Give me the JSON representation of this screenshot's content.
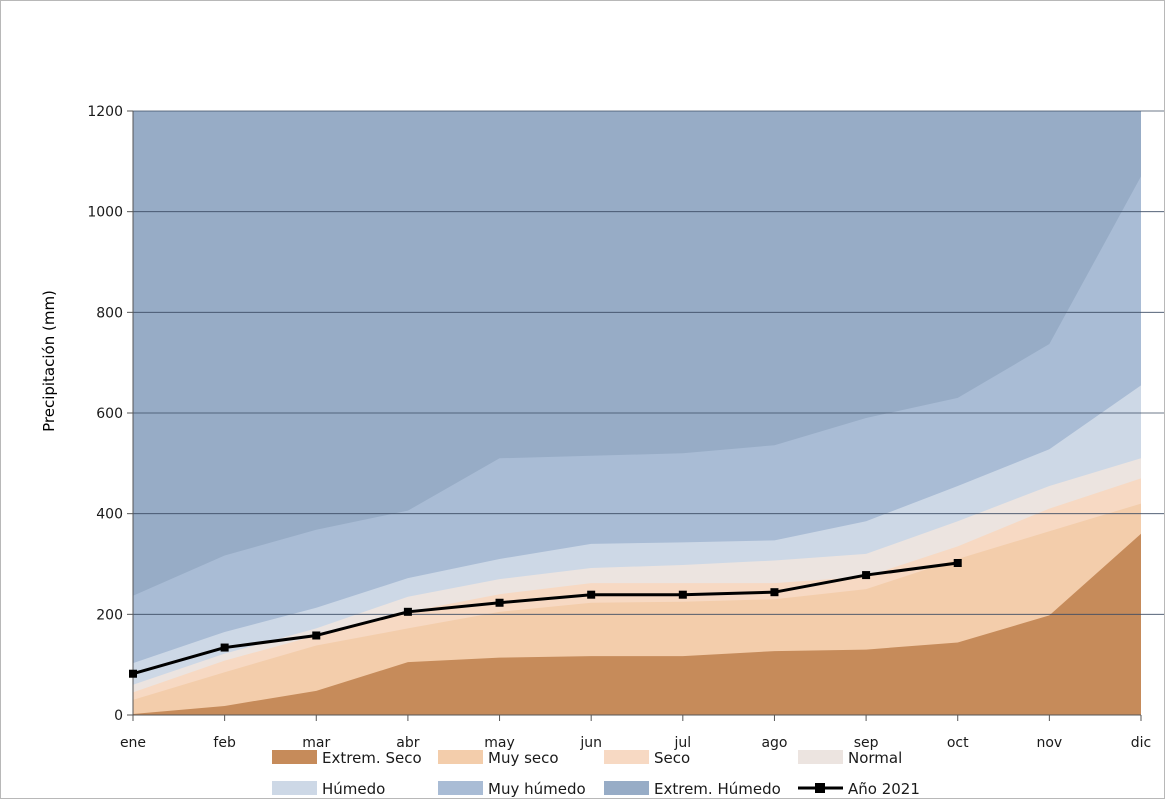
{
  "chart_data": {
    "type": "area",
    "categories": [
      "ene",
      "feb",
      "mar",
      "abr",
      "may",
      "jun",
      "jul",
      "ago",
      "sep",
      "oct",
      "nov",
      "dic"
    ],
    "ylabel": "Precipitación (mm)",
    "xlabel": "",
    "ylim": [
      0,
      1200
    ],
    "yticks": [
      0,
      200,
      400,
      600,
      800,
      1000,
      1200
    ],
    "grid": true,
    "legend_position": "bottom",
    "bands": [
      {
        "name": "Extrem. Seco",
        "color": "#c68b5a",
        "values": [
          2,
          18,
          48,
          105,
          114,
          117,
          117,
          127,
          130,
          144,
          198,
          360
        ]
      },
      {
        "name": "Muy seco",
        "color": "#f3cdab",
        "values": [
          30,
          85,
          138,
          172,
          205,
          223,
          225,
          230,
          250,
          310,
          365,
          420
        ]
      },
      {
        "name": "Seco",
        "color": "#f7d9c3",
        "values": [
          45,
          108,
          158,
          205,
          240,
          262,
          262,
          262,
          275,
          335,
          410,
          470
        ]
      },
      {
        "name": "Normal",
        "color": "#ece4e0",
        "values": [
          60,
          122,
          172,
          235,
          270,
          292,
          298,
          307,
          320,
          385,
          455,
          510
        ]
      },
      {
        "name": "Húmedo",
        "color": "#cdd8e6",
        "values": [
          103,
          165,
          213,
          272,
          310,
          340,
          343,
          347,
          385,
          455,
          528,
          655
        ]
      },
      {
        "name": "Muy húmedo",
        "color": "#a9bcd5",
        "values": [
          237,
          317,
          368,
          406,
          510,
          515,
          520,
          536,
          590,
          630,
          737,
          1070
        ]
      },
      {
        "name": "Extrem. Húmedo",
        "color": "#97acc6",
        "values": [
          1200,
          1200,
          1200,
          1200,
          1200,
          1200,
          1200,
          1200,
          1200,
          1200,
          1200,
          1200
        ]
      }
    ],
    "series": [
      {
        "name": "Año 2021",
        "color": "#000000",
        "values": [
          82,
          134,
          158,
          205,
          223,
          239,
          239,
          244,
          278,
          302,
          null,
          null
        ]
      }
    ]
  }
}
